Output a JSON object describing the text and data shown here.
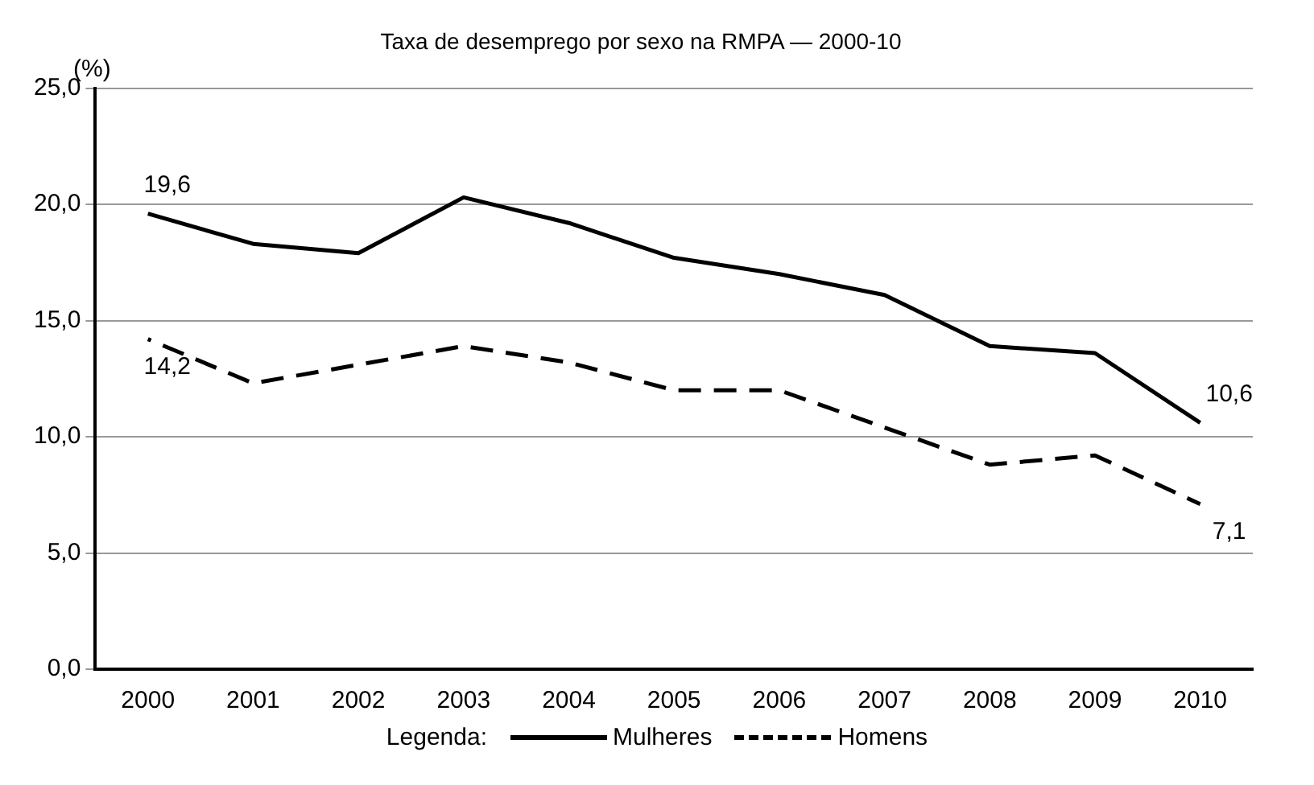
{
  "chart_data": {
    "type": "line",
    "title": "Taxa de desemprego por sexo na RMPA — 2000-10",
    "ylabel": "(%)",
    "legend_title": "Legenda:",
    "categories": [
      "2000",
      "2001",
      "2002",
      "2003",
      "2004",
      "2005",
      "2006",
      "2007",
      "2008",
      "2009",
      "2010"
    ],
    "series": [
      {
        "name": "Mulheres",
        "color": "#000000",
        "line_style": "solid",
        "values": [
          19.6,
          18.3,
          17.9,
          20.3,
          19.2,
          17.7,
          17.0,
          16.1,
          13.9,
          13.6,
          10.6
        ],
        "value_labels": [
          "19,6",
          null,
          null,
          null,
          null,
          null,
          null,
          null,
          null,
          null,
          "10,6"
        ]
      },
      {
        "name": "Homens",
        "color": "#000000",
        "line_style": "dashed",
        "values": [
          14.2,
          12.3,
          13.1,
          13.9,
          13.2,
          12.0,
          12.0,
          10.4,
          8.8,
          9.2,
          7.1
        ],
        "value_labels": [
          "14,2",
          null,
          null,
          null,
          null,
          null,
          null,
          null,
          null,
          null,
          "7,1"
        ]
      }
    ],
    "ylim": [
      0,
      25
    ],
    "yticks": [
      {
        "value": 0,
        "label": "0,0"
      },
      {
        "value": 5,
        "label": "5,0"
      },
      {
        "value": 10,
        "label": "10,0"
      },
      {
        "value": 15,
        "label": "15,0"
      },
      {
        "value": 20,
        "label": "20,0"
      },
      {
        "value": 25,
        "label": "25,0"
      }
    ],
    "grid": "y",
    "legend": "bottom",
    "marker": "none"
  }
}
